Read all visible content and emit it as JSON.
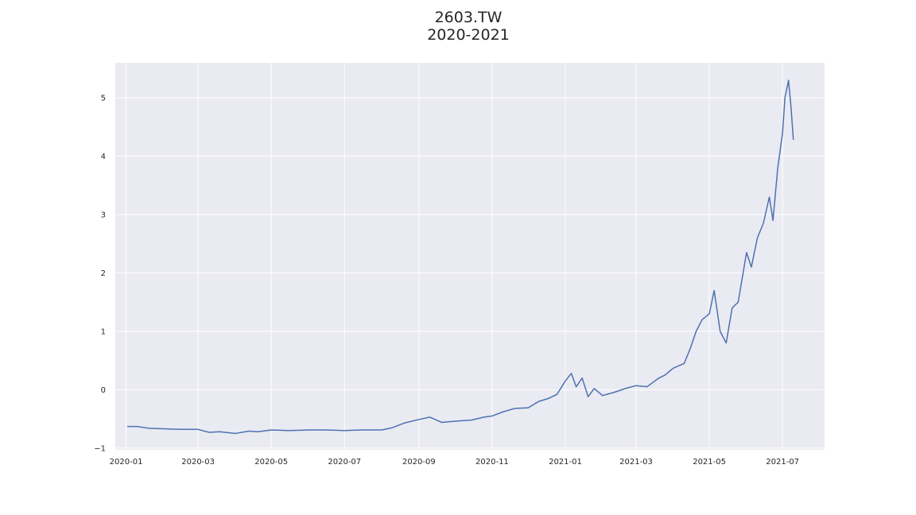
{
  "chart_data": {
    "type": "line",
    "title": "2603.TW",
    "subtitle": "2020-2021",
    "xlabel": "",
    "ylabel": "",
    "x_ticks": [
      "2020-01",
      "2020-03",
      "2020-05",
      "2020-07",
      "2020-09",
      "2020-11",
      "2021-01",
      "2021-03",
      "2021-05",
      "2021-07"
    ],
    "y_ticks": [
      "−1",
      "0",
      "1",
      "2",
      "3",
      "4",
      "5"
    ],
    "xlim": [
      "2019-12-23",
      "2021-08-05"
    ],
    "ylim": [
      -1.03,
      5.6
    ],
    "grid": true,
    "background": "#eaeaf2",
    "line_color": "#4c72b0",
    "series": [
      {
        "x": [
          "2020-01-02",
          "2020-01-10",
          "2020-01-20",
          "2020-02-01",
          "2020-02-15",
          "2020-03-01",
          "2020-03-10",
          "2020-03-19",
          "2020-04-01",
          "2020-04-12",
          "2020-04-20",
          "2020-05-01",
          "2020-05-15",
          "2020-06-01",
          "2020-06-15",
          "2020-07-01",
          "2020-07-15",
          "2020-08-01",
          "2020-08-10",
          "2020-08-20",
          "2020-09-01",
          "2020-09-10",
          "2020-09-20",
          "2020-10-01",
          "2020-10-15",
          "2020-10-25",
          "2020-11-01",
          "2020-11-10",
          "2020-11-20",
          "2020-12-01",
          "2020-12-10",
          "2020-12-18",
          "2020-12-25",
          "2021-01-01",
          "2021-01-06",
          "2021-01-10",
          "2021-01-15",
          "2021-01-20",
          "2021-01-25",
          "2021-02-01",
          "2021-02-10",
          "2021-02-20",
          "2021-03-01",
          "2021-03-10",
          "2021-03-20",
          "2021-03-25",
          "2021-04-01",
          "2021-04-10",
          "2021-04-15",
          "2021-04-20",
          "2021-04-25",
          "2021-05-01",
          "2021-05-05",
          "2021-05-10",
          "2021-05-15",
          "2021-05-20",
          "2021-05-25",
          "2021-06-01",
          "2021-06-05",
          "2021-06-10",
          "2021-06-15",
          "2021-06-20",
          "2021-06-23",
          "2021-06-27",
          "2021-07-01",
          "2021-07-03",
          "2021-07-06",
          "2021-07-08",
          "2021-07-10"
        ],
        "y": [
          -0.63,
          -0.63,
          -0.66,
          -0.67,
          -0.68,
          -0.68,
          -0.73,
          -0.72,
          -0.75,
          -0.71,
          -0.72,
          -0.69,
          -0.7,
          -0.69,
          -0.69,
          -0.7,
          -0.69,
          -0.69,
          -0.65,
          -0.57,
          -0.51,
          -0.47,
          -0.56,
          -0.54,
          -0.52,
          -0.47,
          -0.45,
          -0.38,
          -0.32,
          -0.31,
          -0.2,
          -0.15,
          -0.08,
          0.15,
          0.28,
          0.05,
          0.2,
          -0.12,
          0.02,
          -0.1,
          -0.05,
          0.02,
          0.07,
          0.05,
          0.2,
          0.25,
          0.37,
          0.45,
          0.7,
          1.0,
          1.2,
          1.3,
          1.7,
          1.0,
          0.8,
          1.4,
          1.5,
          2.35,
          2.1,
          2.6,
          2.85,
          3.3,
          2.9,
          3.8,
          4.4,
          5.0,
          5.3,
          4.85,
          4.28
        ]
      }
    ]
  }
}
